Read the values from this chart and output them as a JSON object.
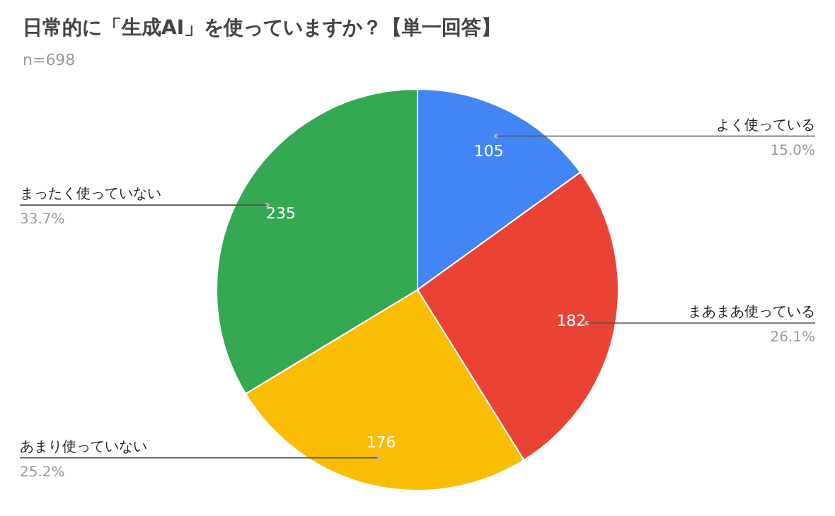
{
  "chart_data": {
    "type": "pie",
    "title": "日常的に「生成AI」を使っていますか？【単一回答】",
    "subtitle": "n=698",
    "categories": [
      "よく使っている",
      "まあまあ使っている",
      "あまり使っていない",
      "まったく使っていない"
    ],
    "values": [
      105,
      182,
      176,
      235
    ],
    "colors": [
      "#4285f4",
      "#ea4335",
      "#fbbc04",
      "#34a853"
    ],
    "data_labels": true,
    "legend": false,
    "annotations": [
      {
        "text": "15.0%",
        "x": "よく使っている"
      },
      {
        "text": "26.1%",
        "x": "まあまあ使っている"
      },
      {
        "text": "25.2%",
        "x": "あまり使っていない"
      },
      {
        "text": "33.7%",
        "x": "まったく使っていない"
      }
    ]
  }
}
